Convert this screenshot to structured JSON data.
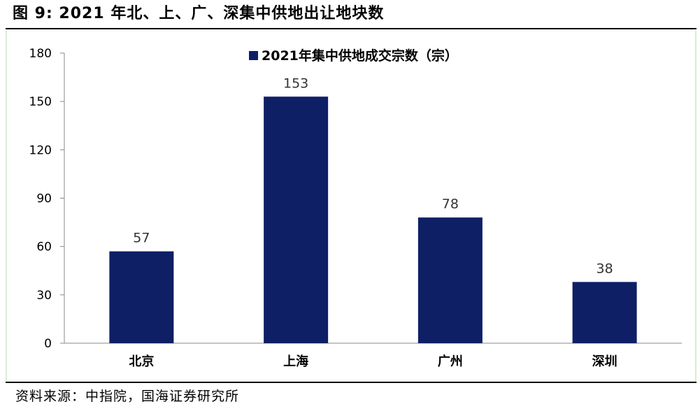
{
  "figure": {
    "title": "图 9:  2021 年北、上、广、深集中供地出让地块数",
    "source": "资料来源：中指院，国海证券研究所"
  },
  "colors": {
    "bar": "#0f1f66",
    "axis": "#888888",
    "background": "#ffffff",
    "panel_border": "#d8ecd2"
  },
  "chart_data": {
    "type": "bar",
    "categories": [
      "北京",
      "上海",
      "广州",
      "深圳"
    ],
    "series": [
      {
        "name": "2021年集中供地成交宗数（宗）",
        "values": [
          57,
          153,
          78,
          38
        ]
      }
    ],
    "ylim": [
      0,
      180
    ],
    "yticks": [
      0,
      30,
      60,
      90,
      120,
      150,
      180
    ],
    "data_labels": [
      "57",
      "153",
      "78",
      "38"
    ],
    "legend_position": "top-center",
    "grid": false
  }
}
